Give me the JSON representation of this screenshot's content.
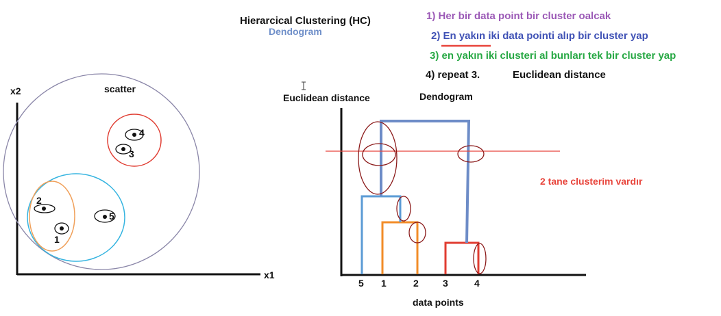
{
  "header": {
    "title": "Hierarcical Clustering  (HC)",
    "subtitle": "Dendogram"
  },
  "steps": [
    {
      "text": "1) Her bir data point bir cluster oalcak",
      "color": "#9b59b6"
    },
    {
      "text": "2) En yakın iki data pointi alıp bir cluster yap",
      "color": "#3f51b5"
    },
    {
      "text": "3) en yakın iki clusteri al bunları tek bir cluster yap",
      "color": "#27a844"
    },
    {
      "text": "4) repeat 3.",
      "color": "#111111"
    }
  ],
  "distance_note": "Euclidean distance",
  "scatter": {
    "label": "scatter",
    "x_axis_label": "x1",
    "y_axis_label": "x2",
    "points": [
      "1",
      "2",
      "3",
      "4",
      "5"
    ]
  },
  "dendrogram": {
    "title": "Dendogram",
    "y_axis_label": "Euclidean distance",
    "x_axis_label": "data points",
    "leaves": [
      "5",
      "1",
      "2",
      "3",
      "4"
    ],
    "result_text": "2 tane clusterim vardır"
  },
  "colors": {
    "blue_link": "#5b9bd5",
    "top_link": "#6d8cc7",
    "orange_link": "#f28c28",
    "red_link": "#e03c31",
    "annotation_red": "#e8453c",
    "dark_red_ellipse": "#8b1a1a",
    "outer_circle": "#8a86a8",
    "cyan_circle": "#35b4e0",
    "orange_ellipse": "#f0a05a"
  }
}
